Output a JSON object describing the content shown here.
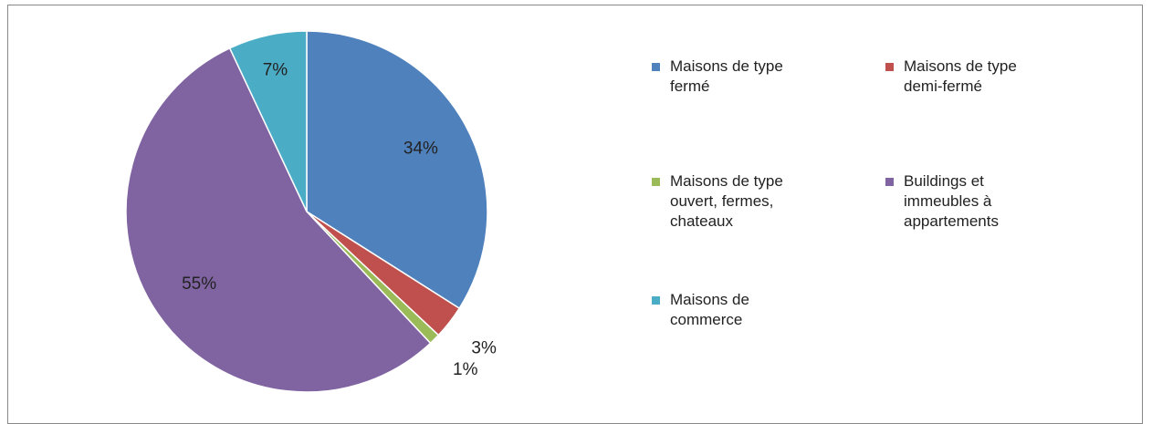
{
  "chart_data": {
    "type": "pie",
    "categories": [
      "Maisons de type fermé",
      "Maisons de type demi-fermé",
      "Maisons de type ouvert, fermes, chateaux",
      "Buildings et immeubles à appartements",
      "Maisons de commerce"
    ],
    "values": [
      34,
      3,
      1,
      55,
      7
    ],
    "value_labels": [
      "34%",
      "3%",
      "1%",
      "55%",
      "7%"
    ],
    "colors": [
      "#4f81bd",
      "#c0504d",
      "#9bbb59",
      "#8064a2",
      "#4bacc6"
    ],
    "legend": "right"
  }
}
